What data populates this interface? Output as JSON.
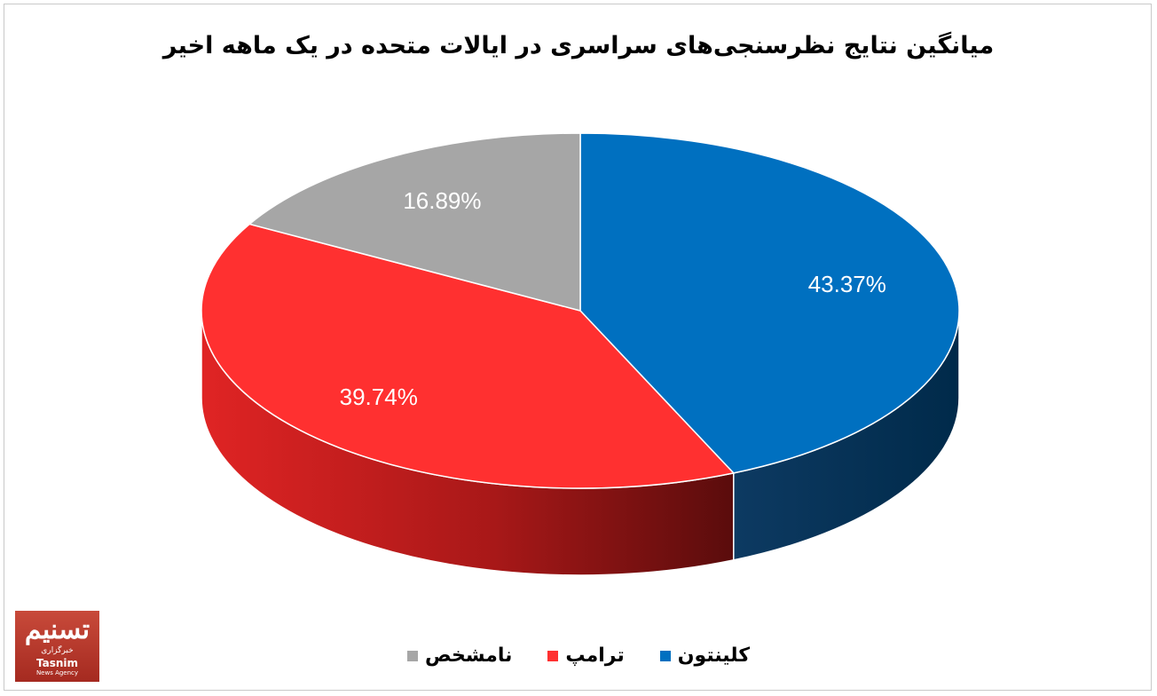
{
  "chart_data": {
    "type": "pie",
    "title": "میانگین نتایج نظرسنجی‌های سراسری در ایالات متحده در یک ماهه اخیر",
    "series": [
      {
        "name": "کلینتون",
        "value": 43.37,
        "label": "43.37%",
        "color": "#0070c0"
      },
      {
        "name": "ترامپ",
        "value": 39.74,
        "label": "39.74%",
        "color": "#ff3030"
      },
      {
        "name": "نامشخص",
        "value": 16.89,
        "label": "16.89%",
        "color": "#a6a6a6"
      }
    ],
    "legend_position": "bottom"
  },
  "logo": {
    "mark": "تسنیم",
    "sub": "خبرگزاری",
    "name": "Tasnim",
    "agency": "News Agency"
  }
}
